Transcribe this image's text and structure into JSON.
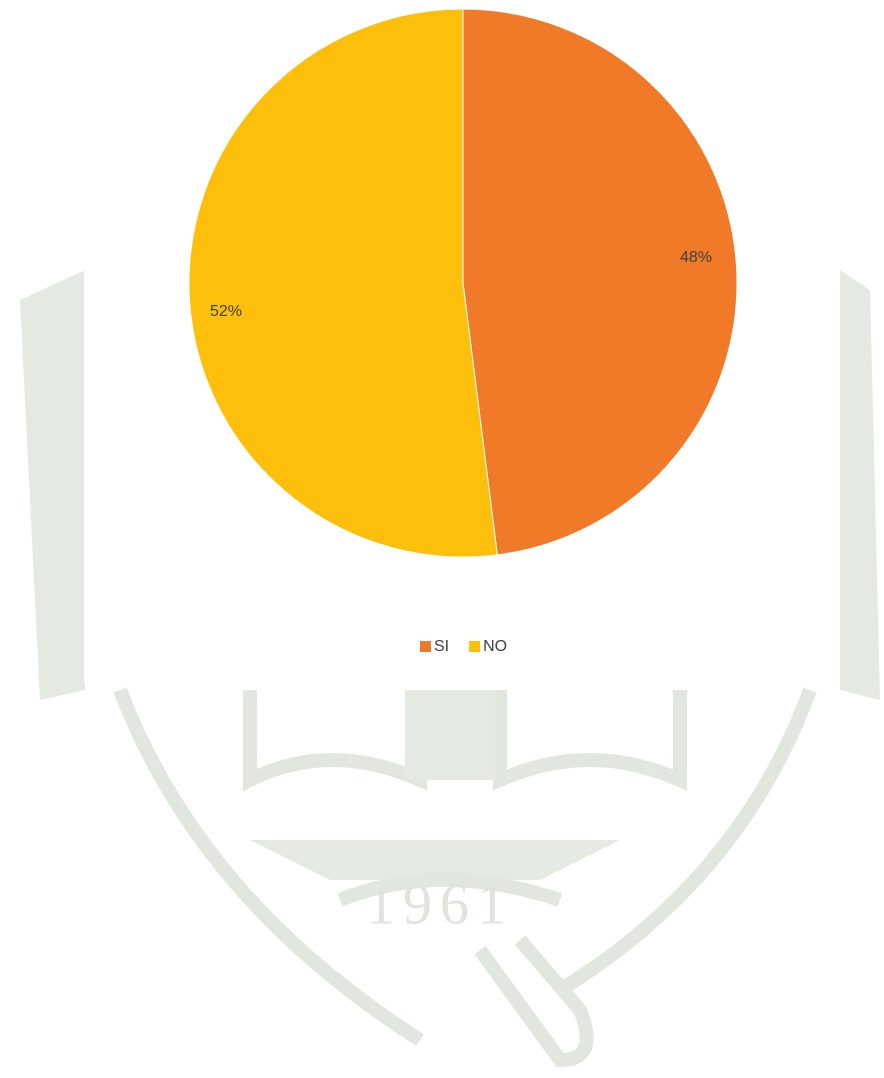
{
  "watermark_text": "1961",
  "chart_data": {
    "type": "pie",
    "categories": [
      "SI",
      "NO"
    ],
    "values": [
      48,
      52
    ],
    "value_labels": [
      "48%",
      "52%"
    ],
    "colors": [
      "#f07a28",
      "#fbbf0c"
    ],
    "legend": "bottom"
  }
}
